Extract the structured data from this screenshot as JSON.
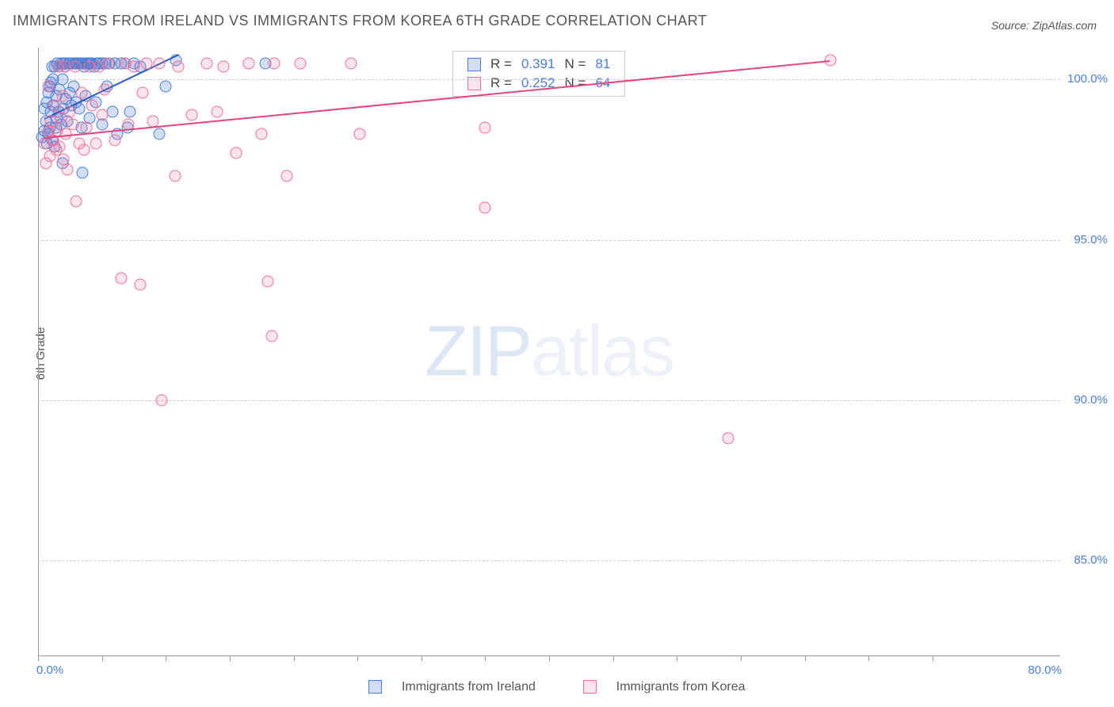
{
  "title": "IMMIGRANTS FROM IRELAND VS IMMIGRANTS FROM KOREA 6TH GRADE CORRELATION CHART",
  "source_label": "Source: ZipAtlas.com",
  "y_axis_label": "6th Grade",
  "watermark_bold": "ZIP",
  "watermark_light": "atlas",
  "chart": {
    "type": "scatter",
    "xlim": [
      0,
      80
    ],
    "ylim": [
      82,
      101
    ],
    "x_axis_start_label": "0.0%",
    "x_axis_end_label": "80.0%",
    "y_ticks": [
      85.0,
      90.0,
      95.0,
      100.0
    ],
    "y_tick_labels": [
      "85.0%",
      "90.0%",
      "95.0%",
      "100.0%"
    ],
    "x_tick_marks": [
      0,
      5,
      10,
      15,
      20,
      25,
      30,
      35,
      40,
      45,
      50,
      55,
      60,
      65,
      70
    ],
    "grid_color": "#cccccc",
    "background_color": "#ffffff",
    "series": [
      {
        "name": "Immigrants from Ireland",
        "color": "#4a7dd8",
        "fill_opacity": 0.25,
        "marker_radius": 7.5,
        "R": 0.391,
        "N": 81,
        "trend": {
          "x1": 0.5,
          "y1": 98.8,
          "x2": 11.0,
          "y2": 100.8
        },
        "points": [
          [
            0.3,
            98.2
          ],
          [
            0.5,
            98.4
          ],
          [
            0.5,
            99.1
          ],
          [
            0.6,
            98.7
          ],
          [
            0.7,
            99.3
          ],
          [
            0.7,
            98.0
          ],
          [
            0.8,
            99.6
          ],
          [
            0.8,
            98.3
          ],
          [
            0.9,
            99.8
          ],
          [
            0.9,
            98.5
          ],
          [
            1.0,
            99.0
          ],
          [
            1.0,
            99.9
          ],
          [
            1.1,
            98.1
          ],
          [
            1.1,
            100.4
          ],
          [
            1.2,
            99.2
          ],
          [
            1.2,
            100.0
          ],
          [
            1.3,
            97.9
          ],
          [
            1.3,
            100.4
          ],
          [
            1.4,
            98.5
          ],
          [
            1.4,
            99.5
          ],
          [
            1.5,
            100.5
          ],
          [
            1.5,
            98.8
          ],
          [
            1.6,
            100.4
          ],
          [
            1.6,
            99.0
          ],
          [
            1.7,
            99.7
          ],
          [
            1.8,
            100.5
          ],
          [
            1.8,
            98.6
          ],
          [
            1.9,
            100.0
          ],
          [
            1.9,
            97.4
          ],
          [
            2.0,
            100.5
          ],
          [
            2.0,
            99.1
          ],
          [
            2.1,
            100.4
          ],
          [
            2.2,
            99.4
          ],
          [
            2.2,
            100.5
          ],
          [
            2.3,
            98.7
          ],
          [
            2.4,
            100.5
          ],
          [
            2.5,
            99.6
          ],
          [
            2.5,
            100.5
          ],
          [
            2.6,
            99.2
          ],
          [
            2.7,
            100.5
          ],
          [
            2.8,
            99.8
          ],
          [
            2.9,
            100.5
          ],
          [
            3.0,
            99.3
          ],
          [
            3.0,
            100.5
          ],
          [
            3.1,
            100.5
          ],
          [
            3.2,
            99.1
          ],
          [
            3.3,
            100.5
          ],
          [
            3.4,
            100.5
          ],
          [
            3.4,
            98.5
          ],
          [
            3.5,
            97.1
          ],
          [
            3.5,
            100.5
          ],
          [
            3.6,
            100.4
          ],
          [
            3.7,
            99.5
          ],
          [
            3.8,
            100.5
          ],
          [
            3.9,
            100.5
          ],
          [
            4.0,
            100.5
          ],
          [
            4.0,
            98.8
          ],
          [
            4.1,
            100.5
          ],
          [
            4.2,
            100.5
          ],
          [
            4.4,
            100.4
          ],
          [
            4.5,
            99.3
          ],
          [
            4.6,
            100.5
          ],
          [
            4.8,
            100.5
          ],
          [
            5.0,
            100.5
          ],
          [
            5.0,
            98.6
          ],
          [
            5.3,
            100.5
          ],
          [
            5.4,
            99.8
          ],
          [
            5.6,
            100.5
          ],
          [
            5.8,
            99.0
          ],
          [
            6.0,
            100.5
          ],
          [
            6.2,
            98.3
          ],
          [
            6.5,
            100.5
          ],
          [
            6.8,
            100.5
          ],
          [
            7.0,
            98.5
          ],
          [
            7.2,
            99.0
          ],
          [
            7.5,
            100.5
          ],
          [
            8.0,
            100.4
          ],
          [
            9.5,
            98.3
          ],
          [
            10.0,
            99.8
          ],
          [
            10.8,
            100.6
          ],
          [
            17.8,
            100.5
          ]
        ]
      },
      {
        "name": "Immigrants from Korea",
        "color": "#f06e96",
        "fill_opacity": 0.18,
        "marker_radius": 7.5,
        "R": 0.252,
        "N": 64,
        "trend": {
          "x1": 0.5,
          "y1": 98.2,
          "x2": 62.0,
          "y2": 100.6
        },
        "points": [
          [
            0.5,
            98.0
          ],
          [
            0.6,
            97.4
          ],
          [
            0.8,
            98.4
          ],
          [
            0.8,
            99.8
          ],
          [
            0.9,
            97.6
          ],
          [
            1.0,
            98.7
          ],
          [
            1.2,
            98.1
          ],
          [
            1.3,
            99.2
          ],
          [
            1.4,
            97.8
          ],
          [
            1.5,
            98.4
          ],
          [
            1.6,
            100.4
          ],
          [
            1.7,
            97.9
          ],
          [
            1.8,
            98.8
          ],
          [
            1.9,
            99.5
          ],
          [
            2.0,
            97.5
          ],
          [
            2.1,
            100.4
          ],
          [
            2.2,
            98.3
          ],
          [
            2.3,
            97.2
          ],
          [
            2.5,
            99.0
          ],
          [
            2.7,
            98.6
          ],
          [
            2.9,
            100.4
          ],
          [
            3.0,
            96.2
          ],
          [
            3.2,
            98.0
          ],
          [
            3.4,
            99.6
          ],
          [
            3.6,
            97.8
          ],
          [
            3.8,
            98.5
          ],
          [
            4.0,
            100.4
          ],
          [
            4.2,
            99.2
          ],
          [
            4.5,
            98.0
          ],
          [
            4.8,
            100.4
          ],
          [
            5.0,
            98.9
          ],
          [
            5.2,
            99.7
          ],
          [
            5.5,
            100.5
          ],
          [
            6.0,
            98.1
          ],
          [
            6.5,
            93.8
          ],
          [
            6.8,
            100.5
          ],
          [
            7.1,
            98.6
          ],
          [
            7.5,
            100.4
          ],
          [
            8.0,
            93.6
          ],
          [
            8.2,
            99.6
          ],
          [
            8.5,
            100.5
          ],
          [
            9.0,
            98.7
          ],
          [
            9.5,
            100.5
          ],
          [
            9.7,
            90.0
          ],
          [
            10.7,
            97.0
          ],
          [
            11.0,
            100.4
          ],
          [
            12.0,
            98.9
          ],
          [
            13.2,
            100.5
          ],
          [
            14.0,
            99.0
          ],
          [
            14.5,
            100.4
          ],
          [
            15.5,
            97.7
          ],
          [
            16.5,
            100.5
          ],
          [
            17.5,
            98.3
          ],
          [
            18.0,
            93.7
          ],
          [
            18.3,
            92.0
          ],
          [
            18.5,
            100.5
          ],
          [
            19.5,
            97.0
          ],
          [
            20.5,
            100.5
          ],
          [
            24.5,
            100.5
          ],
          [
            25.2,
            98.3
          ],
          [
            35.0,
            96.0
          ],
          [
            35.0,
            98.5
          ],
          [
            54.0,
            88.8
          ],
          [
            62.0,
            100.6
          ]
        ]
      }
    ]
  },
  "legend": {
    "R_label": "R",
    "N_label": "N",
    "eq": "="
  },
  "bottom_legend": {
    "items": [
      {
        "label": "Immigrants from Ireland",
        "swatch": "blue"
      },
      {
        "label": "Immigrants from Korea",
        "swatch": "pink"
      }
    ]
  },
  "colors": {
    "blue": "#4a7dd8",
    "pink": "#f06e96",
    "text": "#555555"
  }
}
